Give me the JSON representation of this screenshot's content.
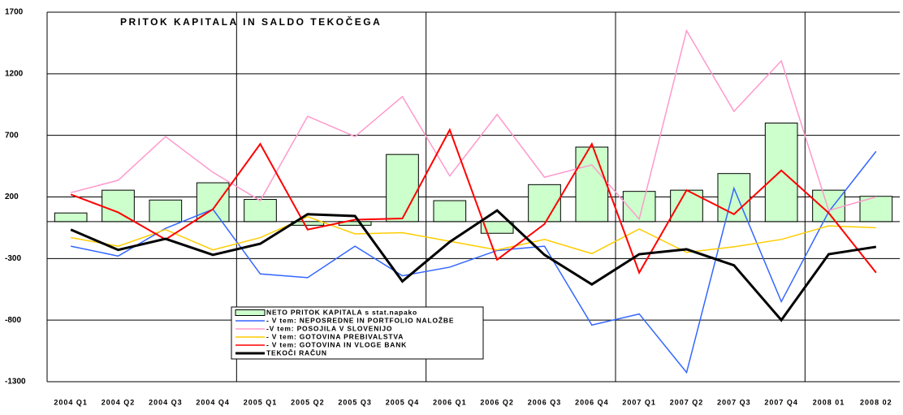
{
  "chart_data": {
    "type": "bar",
    "title": "PRITOK KAPITALA IN SALDO TEKOČEGA",
    "categories": [
      "2004 Q1",
      "2004 Q2",
      "2004 Q3",
      "2004 Q4",
      "2005 Q1",
      "2005 Q2",
      "2005 Q3",
      "2005 Q4",
      "2006 Q1",
      "2006 Q2",
      "2006 Q3",
      "2006 Q4",
      "2007 Q1",
      "2007 Q2",
      "2007 Q3",
      "2007 Q4",
      "2008 01",
      "2008 02"
    ],
    "ylim": [
      -1300,
      1700
    ],
    "yticks": [
      -1300,
      -800,
      -300,
      200,
      700,
      1200,
      1700
    ],
    "grid": true,
    "series": [
      {
        "name": "NETO PRITOK KAPITALA s stat.napako",
        "type": "bar",
        "color": "#ccffcc",
        "values": [
          70,
          255,
          175,
          315,
          180,
          -30,
          -30,
          545,
          170,
          -95,
          300,
          605,
          245,
          255,
          390,
          800,
          255,
          205
        ]
      },
      {
        "name": "- V tem: NEPOSREDNE IN PORTFOLIO NALOŽBE",
        "type": "line",
        "color": "#3366ff",
        "values": [
          -200,
          -280,
          -55,
          100,
          -425,
          -455,
          -200,
          -440,
          -370,
          -235,
          -200,
          -840,
          -750,
          -1225,
          270,
          -650,
          80,
          570
        ]
      },
      {
        "name": "-V tem: POSOJILA V SLOVENIJO",
        "type": "line",
        "color": "#ff99cc",
        "values": [
          235,
          335,
          690,
          400,
          170,
          855,
          690,
          1015,
          370,
          870,
          360,
          460,
          20,
          1550,
          895,
          1305,
          90,
          200
        ]
      },
      {
        "name": "- V tem: GOTOVINA PREBIVALSTVA",
        "type": "line",
        "color": "#ffcc00",
        "values": [
          -130,
          -200,
          -65,
          -230,
          -130,
          40,
          -100,
          -90,
          -160,
          -230,
          -145,
          -260,
          -60,
          -250,
          -205,
          -145,
          -35,
          -50
        ]
      },
      {
        "name": "- V tem: GOTOVINA IN VLOGE BANK",
        "type": "line",
        "color": "#ff0000",
        "values": [
          220,
          75,
          -145,
          100,
          630,
          -65,
          15,
          25,
          745,
          -310,
          -20,
          630,
          -415,
          255,
          60,
          415,
          70,
          -415
        ]
      },
      {
        "name": "TEKOČI RAČUN",
        "type": "line",
        "color": "#000000",
        "values": [
          -65,
          -230,
          -140,
          -270,
          -180,
          60,
          45,
          -485,
          -165,
          90,
          -270,
          -510,
          -265,
          -225,
          -355,
          -800,
          -265,
          -205
        ]
      }
    ]
  }
}
